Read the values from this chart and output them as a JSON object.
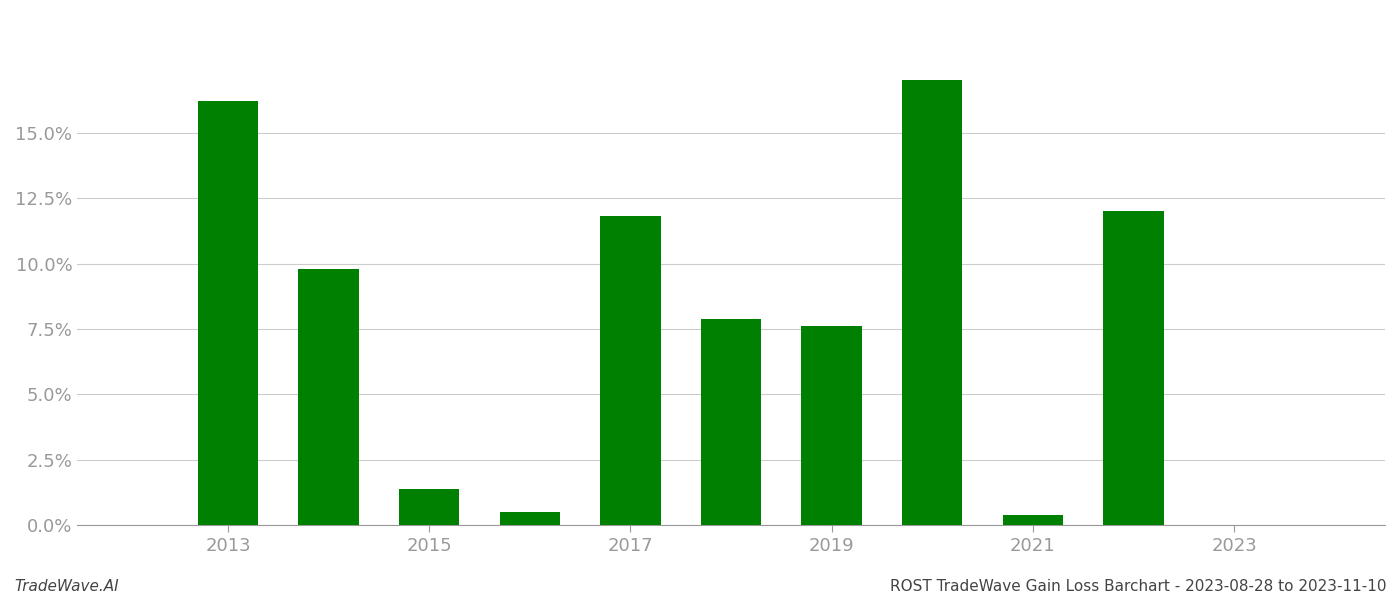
{
  "years": [
    2013,
    2014,
    2015,
    2016,
    2017,
    2018,
    2019,
    2020,
    2021,
    2022,
    2023
  ],
  "values": [
    0.162,
    0.098,
    0.014,
    0.005,
    0.118,
    0.079,
    0.076,
    0.17,
    0.004,
    0.12,
    0.0
  ],
  "bar_color": "#008000",
  "background_color": "#ffffff",
  "grid_color": "#cccccc",
  "axis_color": "#999999",
  "tick_color": "#999999",
  "yticks": [
    0.0,
    0.025,
    0.05,
    0.075,
    0.1,
    0.125,
    0.15
  ],
  "ylim": [
    0.0,
    0.195
  ],
  "xlim": [
    2011.5,
    2024.5
  ],
  "xtick_labels": [
    "2013",
    "2015",
    "2017",
    "2019",
    "2021",
    "2023"
  ],
  "xtick_positions": [
    2013,
    2015,
    2017,
    2019,
    2021,
    2023
  ],
  "footer_left": "TradeWave.AI",
  "footer_right": "ROST TradeWave Gain Loss Barchart - 2023-08-28 to 2023-11-10",
  "footer_fontsize": 11,
  "tick_fontsize": 13,
  "bar_width": 0.6
}
